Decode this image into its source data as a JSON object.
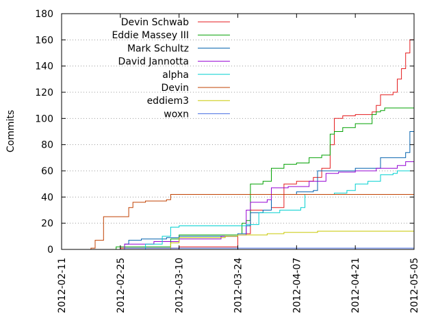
{
  "chart_data": {
    "type": "line",
    "title": "",
    "xlabel": "",
    "ylabel": "Commits",
    "x_range": [
      "2012-02-11",
      "2012-05-05"
    ],
    "ylim": [
      0,
      180
    ],
    "x_ticks": [
      "2012-02-11",
      "2012-02-25",
      "2012-03-10",
      "2012-03-24",
      "2012-04-07",
      "2012-04-21",
      "2012-05-05"
    ],
    "y_ticks": [
      "0",
      "20",
      "40",
      "60",
      "80",
      "100",
      "120",
      "140",
      "160",
      "180"
    ],
    "grid": "horizontal dotted",
    "legend_position": "top-left",
    "series": [
      {
        "name": "Devin Schwab",
        "color": "#e41a1c",
        "points": [
          [
            "2012-02-17",
            0
          ],
          [
            "2012-02-24",
            0
          ],
          [
            "2012-02-25",
            1
          ],
          [
            "2012-03-10",
            2
          ],
          [
            "2012-03-24",
            12
          ],
          [
            "2012-03-27",
            30
          ],
          [
            "2012-04-01",
            32
          ],
          [
            "2012-04-04",
            50
          ],
          [
            "2012-04-07",
            52
          ],
          [
            "2012-04-11",
            55
          ],
          [
            "2012-04-13",
            62
          ],
          [
            "2012-04-15",
            80
          ],
          [
            "2012-04-16",
            100
          ],
          [
            "2012-04-18",
            102
          ],
          [
            "2012-04-21",
            103
          ],
          [
            "2012-04-25",
            105
          ],
          [
            "2012-04-26",
            110
          ],
          [
            "2012-04-27",
            118
          ],
          [
            "2012-04-30",
            120
          ],
          [
            "2012-05-01",
            130
          ],
          [
            "2012-05-02",
            138
          ],
          [
            "2012-05-03",
            150
          ],
          [
            "2012-05-04",
            160
          ],
          [
            "2012-05-05",
            175
          ]
        ]
      },
      {
        "name": "Eddie Massey III",
        "color": "#00a000",
        "points": [
          [
            "2012-02-20",
            0
          ],
          [
            "2012-02-24",
            2
          ],
          [
            "2012-03-08",
            8
          ],
          [
            "2012-03-10",
            11
          ],
          [
            "2012-03-24",
            12
          ],
          [
            "2012-03-25",
            20
          ],
          [
            "2012-03-26",
            22
          ],
          [
            "2012-03-27",
            50
          ],
          [
            "2012-03-30",
            52
          ],
          [
            "2012-04-01",
            62
          ],
          [
            "2012-04-04",
            65
          ],
          [
            "2012-04-07",
            66
          ],
          [
            "2012-04-10",
            70
          ],
          [
            "2012-04-13",
            72
          ],
          [
            "2012-04-15",
            88
          ],
          [
            "2012-04-16",
            90
          ],
          [
            "2012-04-18",
            93
          ],
          [
            "2012-04-21",
            96
          ],
          [
            "2012-04-25",
            103
          ],
          [
            "2012-04-26",
            105
          ],
          [
            "2012-04-27",
            106
          ],
          [
            "2012-04-28",
            108
          ],
          [
            "2012-05-05",
            108
          ]
        ]
      },
      {
        "name": "Mark Schultz",
        "color": "#0060ad",
        "points": [
          [
            "2012-02-19",
            0
          ],
          [
            "2012-02-26",
            4
          ],
          [
            "2012-02-27",
            7
          ],
          [
            "2012-03-01",
            8
          ],
          [
            "2012-03-07",
            9
          ],
          [
            "2012-03-10",
            10
          ],
          [
            "2012-03-24",
            12
          ],
          [
            "2012-03-26",
            18
          ],
          [
            "2012-03-27",
            28
          ],
          [
            "2012-03-30",
            30
          ],
          [
            "2012-04-01",
            42
          ],
          [
            "2012-04-07",
            44
          ],
          [
            "2012-04-11",
            45
          ],
          [
            "2012-04-12",
            60
          ],
          [
            "2012-04-21",
            62
          ],
          [
            "2012-04-27",
            70
          ],
          [
            "2012-05-03",
            74
          ],
          [
            "2012-05-04",
            90
          ],
          [
            "2012-05-05",
            103
          ]
        ]
      },
      {
        "name": "David Jannotta",
        "color": "#9400d3",
        "points": [
          [
            "2012-02-24",
            0
          ],
          [
            "2012-02-26",
            4
          ],
          [
            "2012-03-04",
            6
          ],
          [
            "2012-03-10",
            8
          ],
          [
            "2012-03-20",
            10
          ],
          [
            "2012-03-24",
            11
          ],
          [
            "2012-03-26",
            30
          ],
          [
            "2012-03-27",
            36
          ],
          [
            "2012-03-31",
            38
          ],
          [
            "2012-04-01",
            47
          ],
          [
            "2012-04-05",
            48
          ],
          [
            "2012-04-10",
            52
          ],
          [
            "2012-04-14",
            58
          ],
          [
            "2012-04-17",
            59
          ],
          [
            "2012-04-21",
            60
          ],
          [
            "2012-04-26",
            62
          ],
          [
            "2012-05-01",
            64
          ],
          [
            "2012-05-03",
            67
          ],
          [
            "2012-05-05",
            70
          ]
        ]
      },
      {
        "name": "alpha",
        "color": "#00d0d0",
        "points": [
          [
            "2012-02-25",
            0
          ],
          [
            "2012-03-02",
            4
          ],
          [
            "2012-03-06",
            10
          ],
          [
            "2012-03-08",
            17
          ],
          [
            "2012-03-10",
            18
          ],
          [
            "2012-03-26",
            19
          ],
          [
            "2012-03-29",
            28
          ],
          [
            "2012-04-03",
            30
          ],
          [
            "2012-04-08",
            32
          ],
          [
            "2012-04-09",
            42
          ],
          [
            "2012-04-16",
            43
          ],
          [
            "2012-04-19",
            45
          ],
          [
            "2012-04-21",
            50
          ],
          [
            "2012-04-24",
            52
          ],
          [
            "2012-04-27",
            57
          ],
          [
            "2012-04-30",
            58
          ],
          [
            "2012-05-01",
            60
          ],
          [
            "2012-05-05",
            61
          ]
        ]
      },
      {
        "name": "Devin",
        "color": "#c04000",
        "points": [
          [
            "2012-02-17",
            0
          ],
          [
            "2012-02-18",
            1
          ],
          [
            "2012-02-19",
            7
          ],
          [
            "2012-02-21",
            25
          ],
          [
            "2012-02-26",
            25
          ],
          [
            "2012-02-27",
            32
          ],
          [
            "2012-02-28",
            36
          ],
          [
            "2012-03-02",
            37
          ],
          [
            "2012-03-07",
            38
          ],
          [
            "2012-03-08",
            42
          ],
          [
            "2012-03-10",
            42
          ],
          [
            "2012-04-07",
            42
          ],
          [
            "2012-05-04",
            42
          ],
          [
            "2012-05-05",
            43
          ]
        ]
      },
      {
        "name": "eddiem3",
        "color": "#c8c800",
        "points": [
          [
            "2012-02-20",
            0
          ],
          [
            "2012-03-08",
            5
          ],
          [
            "2012-03-10",
            9
          ],
          [
            "2012-03-21",
            10
          ],
          [
            "2012-03-24",
            11
          ],
          [
            "2012-03-31",
            12
          ],
          [
            "2012-04-04",
            13
          ],
          [
            "2012-04-12",
            14
          ],
          [
            "2012-05-05",
            14
          ]
        ]
      },
      {
        "name": "woxn",
        "color": "#4169e1",
        "points": [
          [
            "2012-02-23",
            0
          ],
          [
            "2012-02-26",
            1
          ],
          [
            "2012-03-10",
            1
          ],
          [
            "2012-05-05",
            1
          ]
        ]
      }
    ]
  }
}
